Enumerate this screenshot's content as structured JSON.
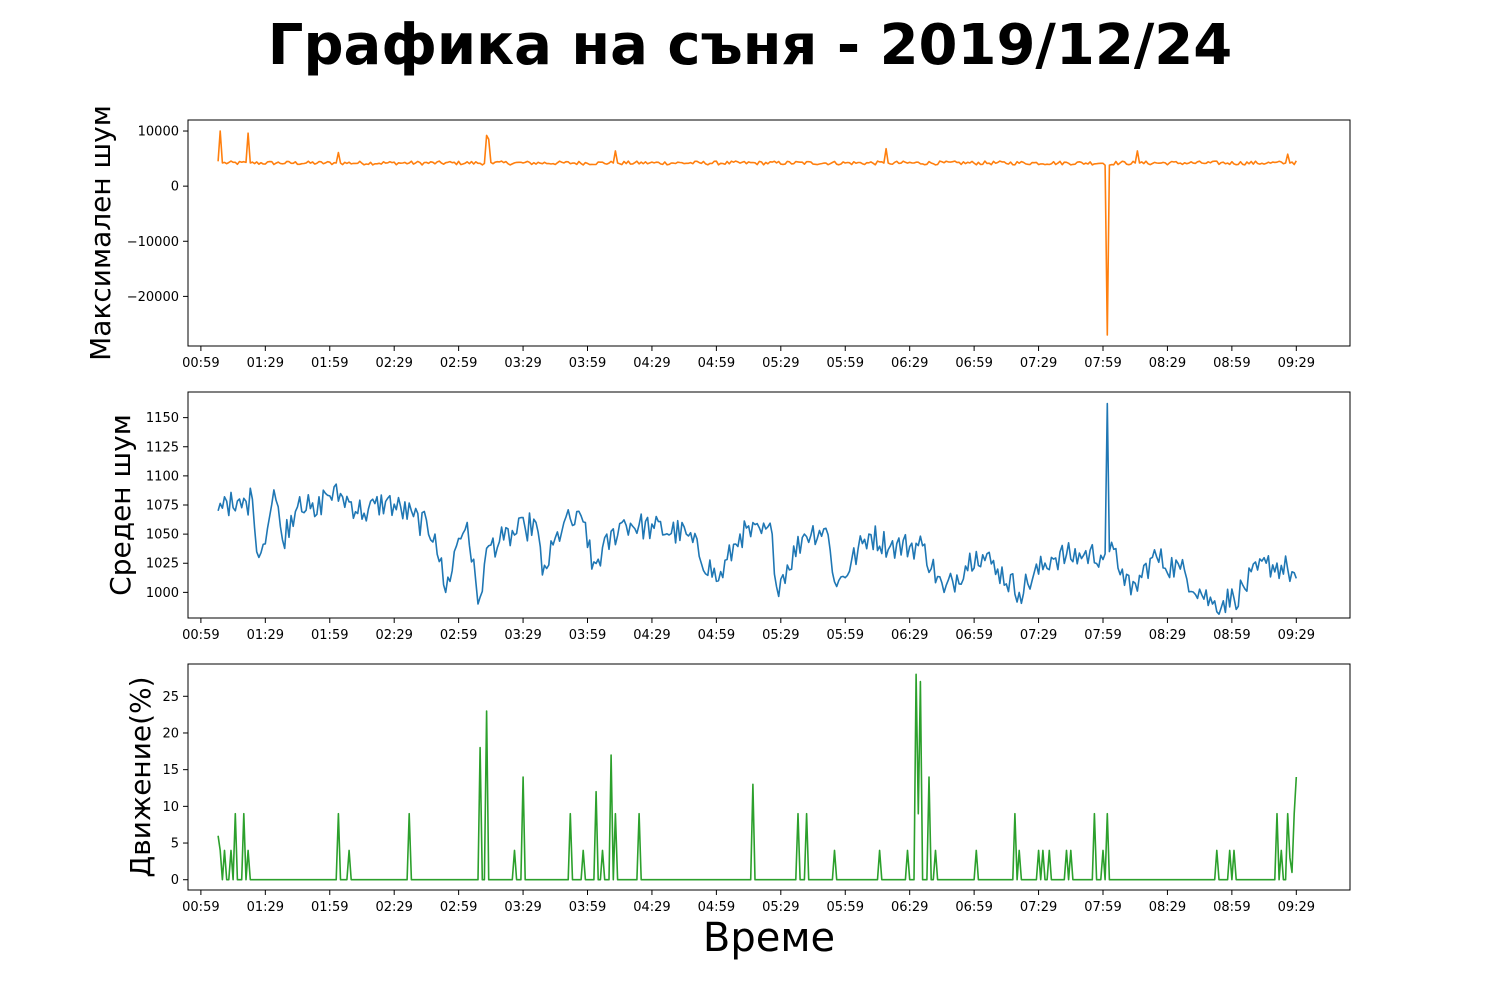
{
  "chart_data": {
    "type": "line",
    "title": "Графика на съня - 2019/12/24",
    "xlabel": "Време",
    "x_ticks": [
      "00:59",
      "01:29",
      "01:59",
      "02:29",
      "02:59",
      "03:29",
      "03:59",
      "04:29",
      "04:59",
      "05:29",
      "05:59",
      "06:29",
      "06:59",
      "07:29",
      "07:59",
      "08:29",
      "08:59",
      "09:29"
    ],
    "x_range": [
      "00:53",
      "09:54"
    ],
    "x_data_range": [
      "01:07",
      "09:29"
    ],
    "panels": [
      {
        "ylabel": "Максимален шум",
        "color": "#ff7f0e",
        "ylim": [
          -29000,
          12000
        ],
        "yticks": [
          -20000,
          -10000,
          0,
          10000
        ],
        "ytick_labels": [
          "−20000",
          "−10000",
          "0",
          "10000"
        ],
        "baseline": 4200,
        "noise": 350,
        "points": [
          {
            "t": "01:07",
            "v": 4500
          },
          {
            "t": "01:08",
            "v": 10000
          },
          {
            "t": "01:09",
            "v": 4200
          },
          {
            "t": "01:20",
            "v": 4300
          },
          {
            "t": "01:21",
            "v": 9600
          },
          {
            "t": "01:22",
            "v": 4200
          },
          {
            "t": "02:02",
            "v": 4200
          },
          {
            "t": "02:03",
            "v": 6100
          },
          {
            "t": "02:04",
            "v": 4200
          },
          {
            "t": "03:11",
            "v": 4100
          },
          {
            "t": "03:12",
            "v": 9200
          },
          {
            "t": "03:13",
            "v": 8500
          },
          {
            "t": "03:14",
            "v": 4300
          },
          {
            "t": "04:11",
            "v": 4200
          },
          {
            "t": "04:12",
            "v": 6400
          },
          {
            "t": "04:13",
            "v": 4200
          },
          {
            "t": "06:17",
            "v": 4200
          },
          {
            "t": "06:18",
            "v": 6800
          },
          {
            "t": "06:19",
            "v": 4200
          },
          {
            "t": "08:00",
            "v": 3800
          },
          {
            "t": "08:01",
            "v": -27000
          },
          {
            "t": "08:02",
            "v": 3800
          },
          {
            "t": "08:14",
            "v": 4200
          },
          {
            "t": "08:15",
            "v": 6400
          },
          {
            "t": "08:16",
            "v": 4200
          },
          {
            "t": "09:24",
            "v": 4200
          },
          {
            "t": "09:25",
            "v": 5800
          },
          {
            "t": "09:26",
            "v": 4200
          },
          {
            "t": "09:29",
            "v": 4600
          }
        ]
      },
      {
        "ylabel": "Среден шум",
        "color": "#1f77b4",
        "ylim": [
          978,
          1172
        ],
        "yticks": [
          1000,
          1025,
          1050,
          1075,
          1100,
          1125,
          1150
        ],
        "ytick_labels": [
          "1000",
          "1025",
          "1050",
          "1075",
          "1100",
          "1125",
          "1150"
        ],
        "noise": 12,
        "points": [
          {
            "t": "01:07",
            "v": 1070
          },
          {
            "t": "01:10",
            "v": 1082
          },
          {
            "t": "01:15",
            "v": 1070
          },
          {
            "t": "01:23",
            "v": 1080
          },
          {
            "t": "01:26",
            "v": 1030
          },
          {
            "t": "01:31",
            "v": 1065
          },
          {
            "t": "01:33",
            "v": 1088
          },
          {
            "t": "01:37",
            "v": 1045
          },
          {
            "t": "01:45",
            "v": 1082
          },
          {
            "t": "01:52",
            "v": 1065
          },
          {
            "t": "01:57",
            "v": 1085
          },
          {
            "t": "02:05",
            "v": 1082
          },
          {
            "t": "02:15",
            "v": 1068
          },
          {
            "t": "02:25",
            "v": 1078
          },
          {
            "t": "02:38",
            "v": 1065
          },
          {
            "t": "02:48",
            "v": 1050
          },
          {
            "t": "02:53",
            "v": 1000
          },
          {
            "t": "02:58",
            "v": 1040
          },
          {
            "t": "03:03",
            "v": 1060
          },
          {
            "t": "03:08",
            "v": 990
          },
          {
            "t": "03:13",
            "v": 1040
          },
          {
            "t": "03:20",
            "v": 1045
          },
          {
            "t": "03:30",
            "v": 1055
          },
          {
            "t": "03:35",
            "v": 1060
          },
          {
            "t": "03:38",
            "v": 1015
          },
          {
            "t": "03:48",
            "v": 1060
          },
          {
            "t": "03:58",
            "v": 1060
          },
          {
            "t": "04:01",
            "v": 1020
          },
          {
            "t": "04:15",
            "v": 1060
          },
          {
            "t": "04:30",
            "v": 1055
          },
          {
            "t": "04:45",
            "v": 1050
          },
          {
            "t": "05:00",
            "v": 1010
          },
          {
            "t": "05:10",
            "v": 1050
          },
          {
            "t": "05:25",
            "v": 1050
          },
          {
            "t": "05:27",
            "v": 1005
          },
          {
            "t": "05:40",
            "v": 1050
          },
          {
            "t": "05:50",
            "v": 1055
          },
          {
            "t": "05:55",
            "v": 1005
          },
          {
            "t": "06:10",
            "v": 1050
          },
          {
            "t": "06:20",
            "v": 1040
          },
          {
            "t": "06:35",
            "v": 1040
          },
          {
            "t": "06:45",
            "v": 1000
          },
          {
            "t": "07:00",
            "v": 1035
          },
          {
            "t": "07:10",
            "v": 1020
          },
          {
            "t": "07:20",
            "v": 1000
          },
          {
            "t": "07:35",
            "v": 1030
          },
          {
            "t": "07:50",
            "v": 1032
          },
          {
            "t": "08:00",
            "v": 1033
          },
          {
            "t": "08:01",
            "v": 1162
          },
          {
            "t": "08:02",
            "v": 1035
          },
          {
            "t": "08:08",
            "v": 1020
          },
          {
            "t": "08:12",
            "v": 998
          },
          {
            "t": "08:22",
            "v": 1030
          },
          {
            "t": "08:35",
            "v": 1020
          },
          {
            "t": "08:50",
            "v": 990
          },
          {
            "t": "09:00",
            "v": 995
          },
          {
            "t": "09:15",
            "v": 1025
          },
          {
            "t": "09:25",
            "v": 1020
          },
          {
            "t": "09:29",
            "v": 1012
          }
        ]
      },
      {
        "ylabel": "Движение(%)",
        "color": "#2ca02c",
        "ylim": [
          -1.4,
          29.4
        ],
        "yticks": [
          0,
          5,
          10,
          15,
          20,
          25
        ],
        "ytick_labels": [
          "0",
          "5",
          "10",
          "15",
          "20",
          "25"
        ],
        "spikes": [
          {
            "t": "01:07",
            "v": 6
          },
          {
            "t": "01:08",
            "v": 4
          },
          {
            "t": "01:10",
            "v": 4
          },
          {
            "t": "01:13",
            "v": 4
          },
          {
            "t": "01:15",
            "v": 9
          },
          {
            "t": "01:19",
            "v": 9
          },
          {
            "t": "01:21",
            "v": 4
          },
          {
            "t": "02:03",
            "v": 9
          },
          {
            "t": "02:08",
            "v": 4
          },
          {
            "t": "02:36",
            "v": 9
          },
          {
            "t": "03:09",
            "v": 18
          },
          {
            "t": "03:12",
            "v": 23
          },
          {
            "t": "03:25",
            "v": 4
          },
          {
            "t": "03:29",
            "v": 14
          },
          {
            "t": "03:51",
            "v": 9
          },
          {
            "t": "03:57",
            "v": 4
          },
          {
            "t": "04:03",
            "v": 12
          },
          {
            "t": "04:06",
            "v": 4
          },
          {
            "t": "04:10",
            "v": 17
          },
          {
            "t": "04:12",
            "v": 9
          },
          {
            "t": "04:23",
            "v": 9
          },
          {
            "t": "05:16",
            "v": 13
          },
          {
            "t": "05:37",
            "v": 9
          },
          {
            "t": "05:41",
            "v": 9
          },
          {
            "t": "05:54",
            "v": 4
          },
          {
            "t": "06:15",
            "v": 4
          },
          {
            "t": "06:28",
            "v": 4
          },
          {
            "t": "06:32",
            "v": 28
          },
          {
            "t": "06:33",
            "v": 9
          },
          {
            "t": "06:34",
            "v": 27
          },
          {
            "t": "06:38",
            "v": 14
          },
          {
            "t": "06:41",
            "v": 4
          },
          {
            "t": "07:00",
            "v": 4
          },
          {
            "t": "07:18",
            "v": 9
          },
          {
            "t": "07:20",
            "v": 4
          },
          {
            "t": "07:29",
            "v": 4
          },
          {
            "t": "07:31",
            "v": 4
          },
          {
            "t": "07:34",
            "v": 4
          },
          {
            "t": "07:42",
            "v": 4
          },
          {
            "t": "07:44",
            "v": 4
          },
          {
            "t": "07:55",
            "v": 9
          },
          {
            "t": "07:59",
            "v": 4
          },
          {
            "t": "08:01",
            "v": 9
          },
          {
            "t": "08:52",
            "v": 4
          },
          {
            "t": "08:58",
            "v": 4
          },
          {
            "t": "09:00",
            "v": 4
          },
          {
            "t": "09:20",
            "v": 9
          },
          {
            "t": "09:22",
            "v": 4
          },
          {
            "t": "09:25",
            "v": 9
          },
          {
            "t": "09:26",
            "v": 3
          },
          {
            "t": "09:27",
            "v": 1
          },
          {
            "t": "09:28",
            "v": 9
          },
          {
            "t": "09:29",
            "v": 14
          }
        ]
      }
    ]
  }
}
